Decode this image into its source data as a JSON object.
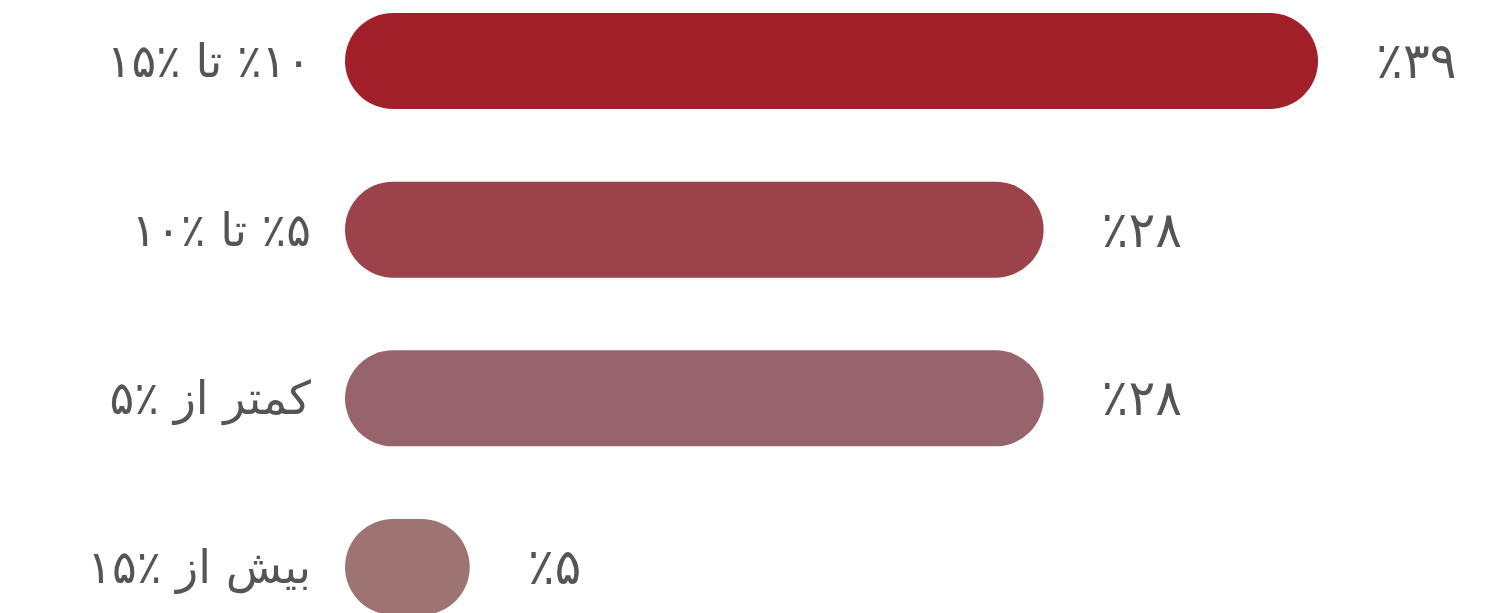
{
  "chart_data": {
    "type": "bar",
    "orientation": "horizontal",
    "categories": [
      "٪۱۰ تا ٪۱۵",
      "٪۵ تا ٪۱۰",
      "کمتر از ٪۵",
      "بیش از ٪۱۵"
    ],
    "values": [
      39,
      28,
      28,
      5
    ],
    "colors": [
      "#a01f28",
      "#9b424a",
      "#98646b",
      "#9e7473"
    ],
    "value_labels": [
      "٪۳۹",
      "٪۲۸",
      "٪۲۸",
      "٪۵"
    ]
  }
}
